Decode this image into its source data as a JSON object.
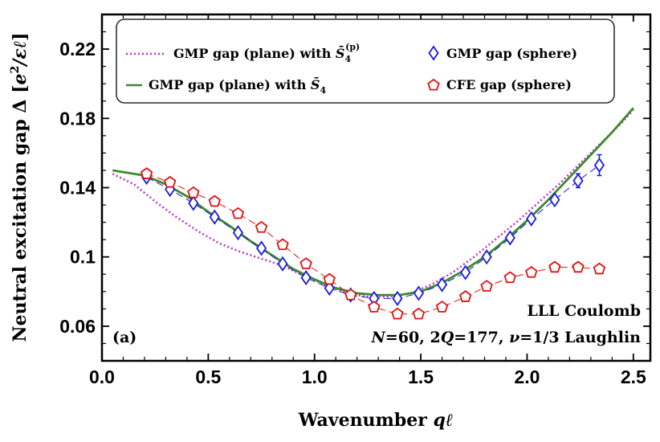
{
  "chart_data": {
    "type": "line",
    "xlabel": "Wavenumber qℓ",
    "ylabel": "Neutral excitation gap Δ [e²/εℓ]",
    "xlim": [
      0,
      2.58
    ],
    "ylim": [
      0.04,
      0.24
    ],
    "x_ticks": [
      "0.0",
      "0.5",
      "1.0",
      "1.5",
      "2.0",
      "2.5"
    ],
    "x_tick_values": [
      0,
      0.5,
      1.0,
      1.5,
      2.0,
      2.5
    ],
    "y_ticks": [
      "0.06",
      "0.1",
      "0.14",
      "0.18",
      "0.22"
    ],
    "y_tick_values": [
      0.06,
      0.1,
      0.14,
      0.18,
      0.22
    ],
    "grid": false,
    "legend_position": "top",
    "annotations": {
      "line1": "LLL Coulomb",
      "line2": "N=60, 2Q=177, ν=1/3 Laughlin",
      "panel": "(a)"
    },
    "series": [
      {
        "name": "GMP gap (plane) with S̄4(p)",
        "style": "dotted",
        "color": "#c030c8",
        "x": [
          0.05,
          0.15,
          0.25,
          0.35,
          0.45,
          0.55,
          0.65,
          0.75,
          0.85,
          0.95,
          1.05,
          1.15,
          1.25,
          1.35,
          1.45,
          1.55,
          1.65,
          1.75,
          1.85,
          1.95,
          2.05,
          2.15,
          2.25,
          2.35,
          2.45,
          2.5
        ],
        "y": [
          0.148,
          0.142,
          0.132,
          0.123,
          0.115,
          0.108,
          0.103,
          0.099,
          0.095,
          0.089,
          0.084,
          0.079,
          0.077,
          0.077,
          0.079,
          0.084,
          0.091,
          0.1,
          0.11,
          0.12,
          0.131,
          0.142,
          0.154,
          0.166,
          0.178,
          0.185
        ]
      },
      {
        "name": "GMP gap (plane) with S̄4",
        "style": "solid",
        "color": "#3a8a2a",
        "x": [
          0.05,
          0.1,
          0.2,
          0.3,
          0.4,
          0.5,
          0.6,
          0.7,
          0.8,
          0.9,
          1.0,
          1.1,
          1.2,
          1.3,
          1.4,
          1.5,
          1.6,
          1.7,
          1.8,
          1.9,
          2.0,
          2.1,
          2.2,
          2.3,
          2.4,
          2.5
        ],
        "y": [
          0.15,
          0.149,
          0.147,
          0.142,
          0.135,
          0.126,
          0.118,
          0.109,
          0.101,
          0.093,
          0.087,
          0.082,
          0.079,
          0.078,
          0.078,
          0.08,
          0.085,
          0.092,
          0.1,
          0.11,
          0.121,
          0.133,
          0.146,
          0.159,
          0.172,
          0.186
        ]
      },
      {
        "name": "GMP gap (sphere)",
        "style": "markers-diamond",
        "color": "#1a1adc",
        "x": [
          0.21,
          0.32,
          0.43,
          0.53,
          0.64,
          0.75,
          0.85,
          0.96,
          1.07,
          1.17,
          1.28,
          1.39,
          1.49,
          1.6,
          1.71,
          1.81,
          1.92,
          2.02,
          2.13,
          2.24,
          2.34
        ],
        "y": [
          0.146,
          0.139,
          0.131,
          0.123,
          0.114,
          0.105,
          0.096,
          0.088,
          0.082,
          0.078,
          0.076,
          0.076,
          0.079,
          0.084,
          0.091,
          0.1,
          0.111,
          0.122,
          0.133,
          0.144,
          0.153
        ],
        "err": [
          0,
          0,
          0,
          0,
          0,
          0,
          0,
          0,
          0,
          0,
          0,
          0,
          0,
          0,
          0,
          0,
          0,
          0,
          0.002,
          0.004,
          0.006
        ]
      },
      {
        "name": "CFE gap (sphere)",
        "style": "markers-pentagon",
        "color": "#e01010",
        "x": [
          0.21,
          0.32,
          0.43,
          0.53,
          0.64,
          0.75,
          0.85,
          0.96,
          1.07,
          1.17,
          1.28,
          1.39,
          1.49,
          1.6,
          1.71,
          1.81,
          1.92,
          2.02,
          2.13,
          2.24,
          2.34
        ],
        "y": [
          0.148,
          0.143,
          0.137,
          0.132,
          0.125,
          0.117,
          0.107,
          0.096,
          0.087,
          0.078,
          0.071,
          0.067,
          0.067,
          0.071,
          0.077,
          0.083,
          0.088,
          0.091,
          0.094,
          0.094,
          0.093
        ]
      }
    ]
  }
}
